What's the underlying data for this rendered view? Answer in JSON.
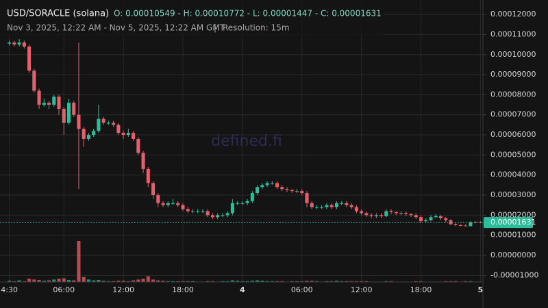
{
  "chart_data": {
    "type": "candlestick",
    "title": "USD/SORACLE (solana)",
    "ohlc_text": "O: 0.00010549 - H: 0.00010772 - L: 0.00001447 - C: 0.00001631",
    "subtitle": "Nov 3, 2025, 12:22 AM - Nov 5, 2025, 12:22 AM GMT",
    "separator": "|",
    "resolution": "Resolution: 15m",
    "watermark": "defined.fi",
    "categories": [
      "4:30",
      null,
      null,
      null,
      null,
      null,
      null,
      null,
      null,
      null,
      null,
      "06:00",
      null,
      null,
      null,
      null,
      null,
      null,
      null,
      null,
      null,
      null,
      null,
      "12:00",
      null,
      null,
      null,
      null,
      null,
      null,
      null,
      null,
      null,
      null,
      null,
      "18:00",
      null,
      null,
      null,
      null,
      null,
      null,
      null,
      null,
      null,
      null,
      null,
      "4",
      null,
      null,
      null,
      null,
      null,
      null,
      null,
      null,
      null,
      null,
      null,
      "06:00",
      null,
      null,
      null,
      null,
      null,
      null,
      null,
      null,
      null,
      null,
      null,
      "12:00",
      null,
      null,
      null,
      null,
      null,
      null,
      null,
      null,
      null,
      null,
      null,
      "18:00",
      null,
      null,
      null,
      null,
      null,
      null,
      null,
      null,
      null,
      null,
      null,
      "5"
    ],
    "open": [
      0.00010549,
      0.000106,
      0.000105,
      0.000106,
      0.000104,
      9.2e-05,
      8.2e-05,
      7.5e-05,
      7.6e-05,
      7.5e-05,
      7.9e-05,
      7.3e-05,
      6.6e-05,
      7.6e-05,
      7e-05,
      6.3e-05,
      5.8e-05,
      6e-05,
      6.2e-05,
      6.8e-05,
      6.6e-05,
      6.6e-05,
      6.5e-05,
      6.1e-05,
      6e-05,
      6.1e-05,
      5.8e-05,
      5.1e-05,
      4.3e-05,
      3.6e-05,
      3e-05,
      2.6e-05,
      2.5e-05,
      2.6e-05,
      2.6e-05,
      2.5e-05,
      2.3e-05,
      2.2e-05,
      2.2e-05,
      2.2e-05,
      2.2e-05,
      2e-05,
      1.9e-05,
      2e-05,
      2e-05,
      2.1e-05,
      2.6e-05,
      2.6e-05,
      2.6e-05,
      2.7e-05,
      3.1e-05,
      3.4e-05,
      3.5e-05,
      3.6e-05,
      3.6e-05,
      3.4e-05,
      3.3e-05,
      3.25e-05,
      3.2e-05,
      3.2e-05,
      3.1e-05,
      2.6e-05,
      2.4e-05,
      2.4e-05,
      2.4e-05,
      2.5e-05,
      2.4e-05,
      2.6e-05,
      2.6e-05,
      2.5e-05,
      2.4e-05,
      2.2e-05,
      2.1e-05,
      2e-05,
      1.95e-05,
      2e-05,
      1.95e-05,
      2.2e-05,
      2.15e-05,
      2.1e-05,
      2.1e-05,
      2.05e-05,
      2e-05,
      1.9e-05,
      1.7e-05,
      1.75e-05,
      1.9e-05,
      1.95e-05,
      1.85e-05,
      1.75e-05,
      1.55e-05,
      1.5e-05,
      1.48e-05,
      1.45e-05,
      1.65e-05,
      1.64e-05
    ],
    "high": [
      0.000107,
      0.000107,
      0.00010772,
      0.000107,
      0.000105,
      9.3e-05,
      8.3e-05,
      7.8e-05,
      7.7e-05,
      8e-05,
      8e-05,
      7.4e-05,
      7.8e-05,
      7.7e-05,
      0.000106,
      6.4e-05,
      6.1e-05,
      6.3e-05,
      7.5e-05,
      6.9e-05,
      6.7e-05,
      6.7e-05,
      6.6e-05,
      6.2e-05,
      6.3e-05,
      6.2e-05,
      5.9e-05,
      5.2e-05,
      4.4e-05,
      3.7e-05,
      3.1e-05,
      2.7e-05,
      2.7e-05,
      2.8e-05,
      2.7e-05,
      2.6e-05,
      2.4e-05,
      2.3e-05,
      2.3e-05,
      2.3e-05,
      2.3e-05,
      2.1e-05,
      2.1e-05,
      2.1e-05,
      2.2e-05,
      2.8e-05,
      2.7e-05,
      2.7e-05,
      2.8e-05,
      3.2e-05,
      3.5e-05,
      3.6e-05,
      3.7e-05,
      3.7e-05,
      3.7e-05,
      3.5e-05,
      3.4e-05,
      3.3e-05,
      3.3e-05,
      3.3e-05,
      3.2e-05,
      2.7e-05,
      2.5e-05,
      2.5e-05,
      2.6e-05,
      2.6e-05,
      2.7e-05,
      2.7e-05,
      2.7e-05,
      2.6e-05,
      2.5e-05,
      2.3e-05,
      2.2e-05,
      2.1e-05,
      2.1e-05,
      2.1e-05,
      2.3e-05,
      2.3e-05,
      2.2e-05,
      2.2e-05,
      2.2e-05,
      2.1e-05,
      2.1e-05,
      2e-05,
      1.85e-05,
      2e-05,
      2.05e-05,
      2e-05,
      1.9e-05,
      1.8e-05,
      1.6e-05,
      1.55e-05,
      1.55e-05,
      1.7e-05,
      1.7e-05,
      1.7e-05
    ],
    "low": [
      0.0001045,
      0.000104,
      0.000104,
      0.000103,
      9.1e-05,
      8.1e-05,
      7.3e-05,
      7.4e-05,
      7.3e-05,
      7.4e-05,
      7e-05,
      6e-05,
      6.5e-05,
      6.9e-05,
      3.3e-05,
      5.4e-05,
      5.7e-05,
      5.9e-05,
      6.1e-05,
      6.5e-05,
      6.5e-05,
      6.4e-05,
      6e-05,
      5.8e-05,
      5.9e-05,
      5.7e-05,
      5e-05,
      4.1e-05,
      3.4e-05,
      2.8e-05,
      2.4e-05,
      2.4e-05,
      2.4e-05,
      2.5e-05,
      2.4e-05,
      2.2e-05,
      2.1e-05,
      2.1e-05,
      2.1e-05,
      2.1e-05,
      1.9e-05,
      1.8e-05,
      1.8e-05,
      1.9e-05,
      1.9e-05,
      2e-05,
      2.5e-05,
      2.5e-05,
      2.5e-05,
      2.6e-05,
      3e-05,
      3.3e-05,
      3.4e-05,
      3.5e-05,
      3.3e-05,
      3.2e-05,
      3.15e-05,
      3.1e-05,
      3.1e-05,
      3e-05,
      2.4e-05,
      2.3e-05,
      2.3e-05,
      2.3e-05,
      2.3e-05,
      2.3e-05,
      2.3e-05,
      2.5e-05,
      2.4e-05,
      2.3e-05,
      2.1e-05,
      2e-05,
      1.9e-05,
      1.85e-05,
      1.85e-05,
      1.85e-05,
      1.9e-05,
      2.05e-05,
      2e-05,
      2e-05,
      1.95e-05,
      1.9e-05,
      1.8e-05,
      1.6e-05,
      1.65e-05,
      1.7e-05,
      1.85e-05,
      1.75e-05,
      1.65e-05,
      1.5e-05,
      1.45e-05,
      1.45e-05,
      1.447e-05,
      1.45e-05,
      1.6e-05,
      1.6e-05
    ],
    "close": [
      0.000106,
      0.000105,
      0.000106,
      0.000104,
      9.2e-05,
      8.2e-05,
      7.5e-05,
      7.6e-05,
      7.5e-05,
      7.9e-05,
      7.3e-05,
      6.6e-05,
      7.6e-05,
      7e-05,
      6.3e-05,
      5.8e-05,
      6e-05,
      6.2e-05,
      6.8e-05,
      6.6e-05,
      6.6e-05,
      6.5e-05,
      6.1e-05,
      6e-05,
      6.1e-05,
      5.8e-05,
      5.1e-05,
      4.3e-05,
      3.6e-05,
      3e-05,
      2.6e-05,
      2.5e-05,
      2.6e-05,
      2.6e-05,
      2.5e-05,
      2.3e-05,
      2.2e-05,
      2.2e-05,
      2.2e-05,
      2.2e-05,
      2e-05,
      1.9e-05,
      2e-05,
      2e-05,
      2.1e-05,
      2.6e-05,
      2.6e-05,
      2.6e-05,
      2.7e-05,
      3.1e-05,
      3.4e-05,
      3.5e-05,
      3.6e-05,
      3.6e-05,
      3.4e-05,
      3.3e-05,
      3.25e-05,
      3.2e-05,
      3.2e-05,
      3.1e-05,
      2.6e-05,
      2.4e-05,
      2.4e-05,
      2.4e-05,
      2.5e-05,
      2.4e-05,
      2.6e-05,
      2.6e-05,
      2.5e-05,
      2.4e-05,
      2.2e-05,
      2.1e-05,
      2e-05,
      1.95e-05,
      2e-05,
      1.95e-05,
      2.2e-05,
      2.15e-05,
      2.1e-05,
      2.1e-05,
      2.05e-05,
      2e-05,
      1.9e-05,
      1.7e-05,
      1.75e-05,
      1.9e-05,
      1.95e-05,
      1.85e-05,
      1.75e-05,
      1.55e-05,
      1.5e-05,
      1.48e-05,
      1.45e-05,
      1.65e-05,
      1.64e-05,
      1.631e-05
    ],
    "volume": [
      3,
      2,
      4,
      2,
      8,
      6,
      5,
      3,
      4,
      6,
      8,
      9,
      5,
      4,
      100,
      12,
      6,
      4,
      5,
      3,
      2,
      2,
      3,
      3,
      2,
      4,
      6,
      8,
      14,
      6,
      4,
      3,
      2,
      2,
      2,
      2,
      2,
      2,
      1,
      1,
      2,
      2,
      1,
      2,
      2,
      4,
      3,
      2,
      2,
      3,
      4,
      3,
      2,
      2,
      2,
      2,
      1,
      2,
      2,
      2,
      3,
      3,
      2,
      1,
      2,
      2,
      3,
      2,
      2,
      2,
      2,
      2,
      2,
      1,
      1,
      1,
      2,
      2,
      1,
      1,
      1,
      1,
      2,
      2,
      1,
      1,
      1,
      1,
      2,
      2,
      2,
      1,
      2,
      2,
      1,
      1
    ],
    "ylim": [
      -1.33e-05,
      0.0001272
    ],
    "yticks": [
      {
        "value": 0.00012,
        "label": "0.00012000"
      },
      {
        "value": 0.00011,
        "label": "0.00011000"
      },
      {
        "value": 0.0001,
        "label": "0.00010000"
      },
      {
        "value": 9e-05,
        "label": "0.00009000"
      },
      {
        "value": 8e-05,
        "label": "0.00008000"
      },
      {
        "value": 7e-05,
        "label": "0.00007000"
      },
      {
        "value": 6e-05,
        "label": "0.00006000"
      },
      {
        "value": 5e-05,
        "label": "0.00005000"
      },
      {
        "value": 4e-05,
        "label": "0.00004000"
      },
      {
        "value": 3e-05,
        "label": "0.00003000"
      },
      {
        "value": 2e-05,
        "label": "0.00002000"
      },
      {
        "value": 1e-05,
        "label": "0.00001000"
      },
      {
        "value": 0,
        "label": "0.00000000"
      },
      {
        "value": -1e-05,
        "label": "-0.00001000"
      }
    ],
    "last_price": {
      "value": 1.631e-05,
      "label": "0.00001631"
    },
    "up_color": "#2ebd9a",
    "down_color": "#e5606c",
    "grid": true
  }
}
